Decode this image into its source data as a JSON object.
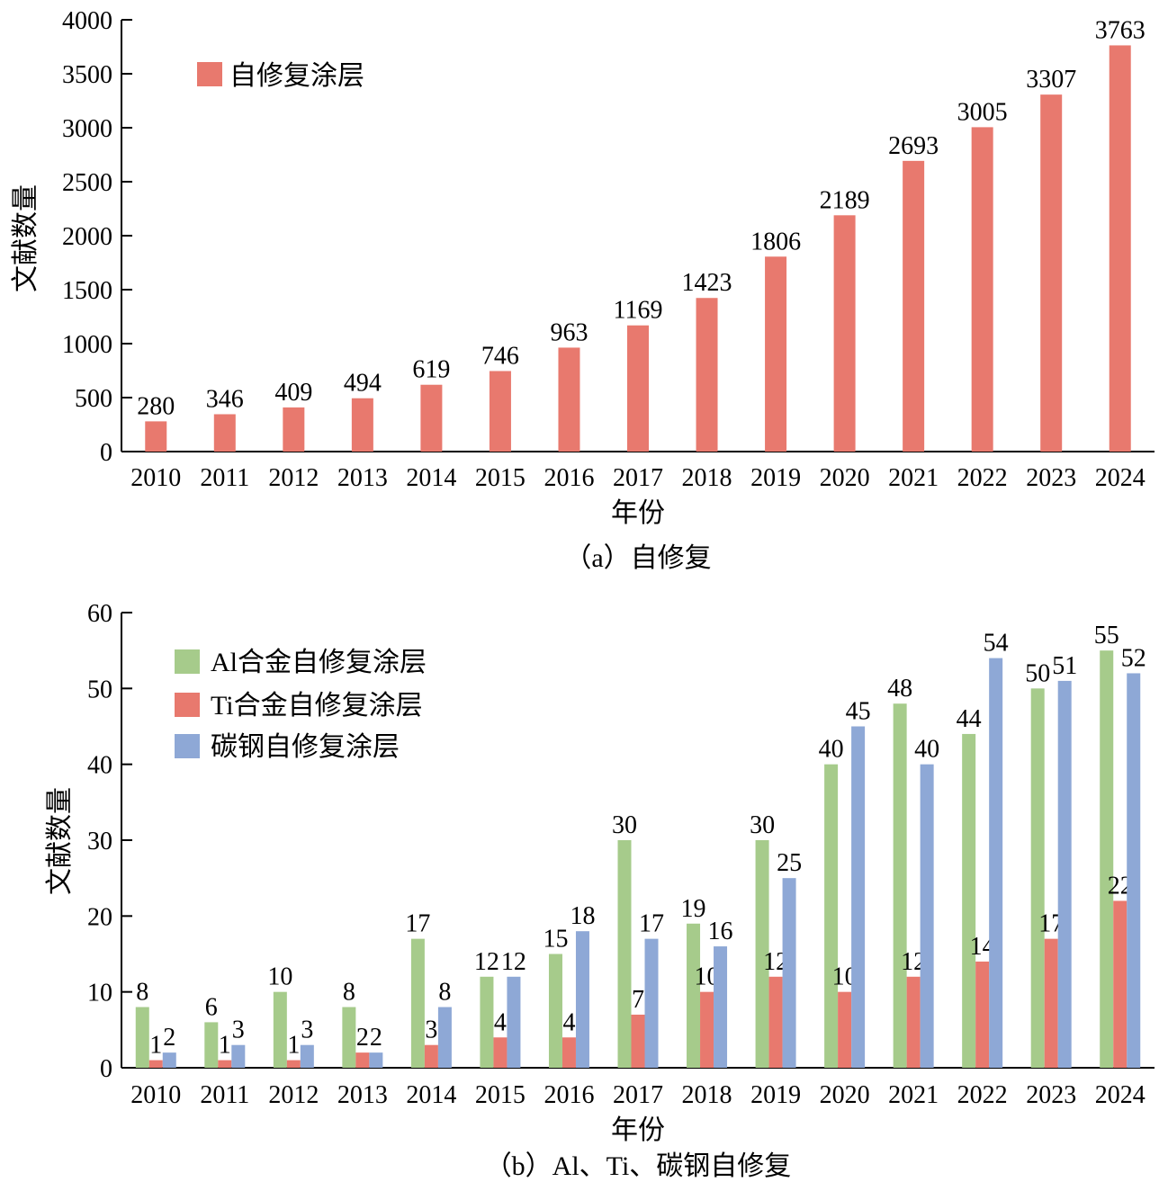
{
  "chart_data": [
    {
      "type": "bar",
      "caption": "（a）自修复",
      "xlabel": "年份",
      "ylabel": "文献数量",
      "ylim": [
        0,
        4000
      ],
      "yticks": [
        0,
        500,
        1000,
        1500,
        2000,
        2500,
        3000,
        3500,
        4000
      ],
      "categories": [
        "2010",
        "2011",
        "2012",
        "2013",
        "2014",
        "2015",
        "2016",
        "2017",
        "2018",
        "2019",
        "2020",
        "2021",
        "2022",
        "2023",
        "2024"
      ],
      "series": [
        {
          "name": "自修复涂层",
          "color": "#E8796E",
          "values": [
            280,
            346,
            409,
            494,
            619,
            746,
            963,
            1169,
            1423,
            1806,
            2189,
            2693,
            3005,
            3307,
            3763
          ]
        }
      ],
      "legend": "top-left",
      "grid": false
    },
    {
      "type": "bar",
      "caption": "（b）Al、Ti、碳钢自修复",
      "xlabel": "年份",
      "ylabel": "文献数量",
      "ylim": [
        0,
        60
      ],
      "yticks": [
        0,
        10,
        20,
        30,
        40,
        50,
        60
      ],
      "categories": [
        "2010",
        "2011",
        "2012",
        "2013",
        "2014",
        "2015",
        "2016",
        "2017",
        "2018",
        "2019",
        "2020",
        "2021",
        "2022",
        "2023",
        "2024"
      ],
      "series": [
        {
          "name": "Al合金自修复涂层",
          "color": "#A6CB8B",
          "values": [
            8,
            6,
            10,
            8,
            17,
            12,
            15,
            30,
            19,
            30,
            40,
            48,
            44,
            50,
            55
          ]
        },
        {
          "name": "Ti合金自修复涂层",
          "color": "#E8796E",
          "values": [
            1,
            1,
            1,
            2,
            3,
            4,
            4,
            7,
            10,
            12,
            10,
            12,
            14,
            17,
            22
          ]
        },
        {
          "name": "碳钢自修复涂层",
          "color": "#8EA8D6",
          "values": [
            2,
            3,
            3,
            2,
            8,
            12,
            18,
            17,
            16,
            25,
            45,
            40,
            54,
            51,
            52
          ]
        }
      ],
      "legend": "top-left",
      "grid": false
    }
  ]
}
